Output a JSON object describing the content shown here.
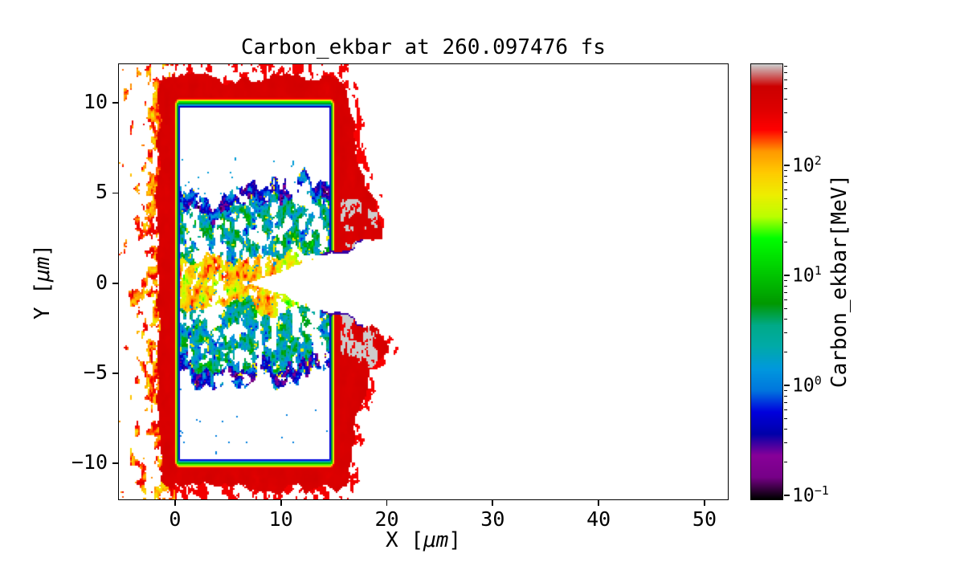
{
  "figure": {
    "background": "#ffffff"
  },
  "chart_data": {
    "type": "heatmap",
    "title": "Carbon_ekbar at 260.097476 fs",
    "xlabel": "X [μm]",
    "ylabel": "Y [μm]",
    "xlim": [
      -5.3,
      52.2
    ],
    "ylim": [
      -12.0,
      12.15
    ],
    "x_ticks": [
      0,
      10,
      20,
      30,
      40,
      50
    ],
    "y_ticks": [
      -10,
      -5,
      0,
      5,
      10
    ],
    "grid": false,
    "colorbar": {
      "label": "Carbon_ekbar[MeV]",
      "scale": "log",
      "vmin": 0.092,
      "vmax": 830,
      "tick_values": [
        0.1,
        1,
        10,
        100
      ],
      "tick_exponents": [
        -1,
        0,
        1,
        2
      ],
      "colormap": "nipy_spectral",
      "stops": [
        [
          0.0,
          "#000000"
        ],
        [
          0.05,
          "#770088"
        ],
        [
          0.1,
          "#880099"
        ],
        [
          0.15,
          "#0000AA"
        ],
        [
          0.2,
          "#0000DD"
        ],
        [
          0.25,
          "#0077DD"
        ],
        [
          0.3,
          "#0099DD"
        ],
        [
          0.35,
          "#00AAAA"
        ],
        [
          0.4,
          "#00AA88"
        ],
        [
          0.45,
          "#009900"
        ],
        [
          0.5,
          "#00BB00"
        ],
        [
          0.55,
          "#00DD00"
        ],
        [
          0.6,
          "#00FF00"
        ],
        [
          0.65,
          "#BBFF00"
        ],
        [
          0.7,
          "#EEEE00"
        ],
        [
          0.75,
          "#FFCC00"
        ],
        [
          0.8,
          "#FF9900"
        ],
        [
          0.85,
          "#FF0000"
        ],
        [
          0.9,
          "#DD0000"
        ],
        [
          0.95,
          "#CC0000"
        ],
        [
          1.0,
          "#CCCCCC"
        ]
      ]
    },
    "scene": {
      "description": "Laser-irradiated carbon slab (x 0–15 μm, |y|≤10 μm): white evacuated voids inside thin shell walls outlined in dark blue (~0.3 MeV); turbulent blue-green carbon bands (~0.2–30 MeV) around a hot yellow-orange on-axis channel (~15–600 MeV); red hot shell/plume (~100–600 MeV) expanding from all surfaces, extending to x≈20 μm on the right with saturated gray blobs (>800 MeV) near y≈±3 μm; fragmented orange-red debris on the left to x≈−5 μm; white laser-channel wedge opening along y=0 from x≈7 μm to the plume edge.",
      "target_x": [
        0,
        15
      ],
      "target_y": [
        -10,
        10
      ],
      "inner_wall_x": [
        0.42,
        14.62
      ],
      "inner_wall_y_abs": 9.78,
      "upper_void_y": [
        5.1,
        9.78
      ],
      "lower_void_y": [
        -9.78,
        -4.8
      ],
      "channel_half_width_um": 1.5,
      "wedge_apex_x": 7.0,
      "wedge_slope": 0.21,
      "plume_extent_x": 20,
      "gray_blob_x": [
        15.7,
        19.2
      ],
      "gray_blob_abs_y": [
        1.5,
        4.7
      ],
      "left_debris_x_min": -5.3,
      "shell_peak_mev": 380,
      "interface_mev": 0.35,
      "band_mev_range": [
        0.22,
        28
      ],
      "channel_mev_range": [
        14,
        630
      ],
      "gray_mev": 900
    }
  }
}
